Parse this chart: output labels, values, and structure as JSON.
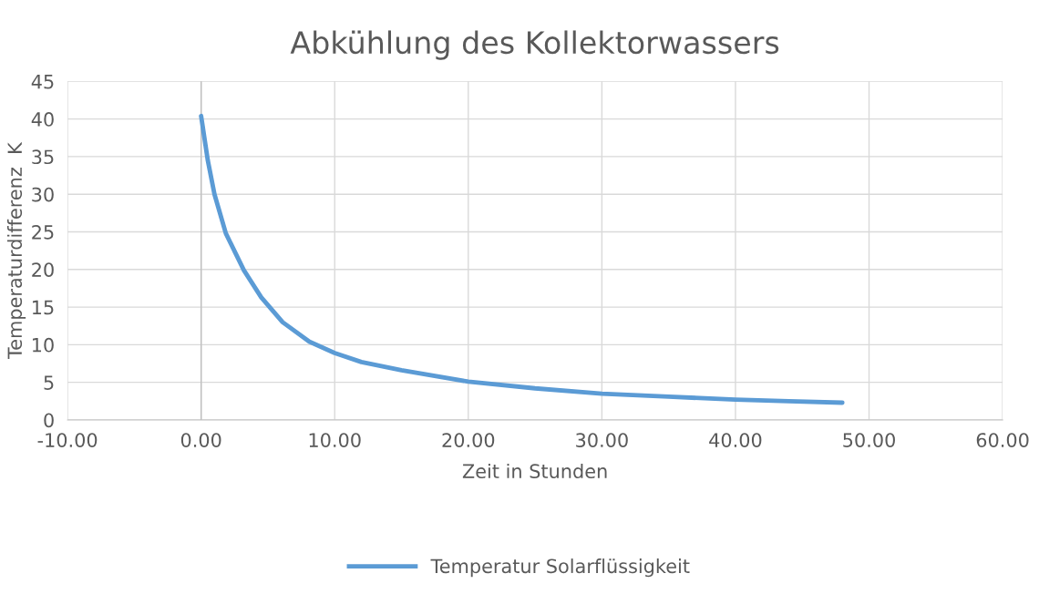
{
  "chart_data": {
    "type": "line",
    "title": "Abkühlung des Kollektorwassers",
    "xlabel": "Zeit in Stunden",
    "ylabel": "Temperaturdifferenz  K",
    "series": [
      {
        "name": "Temperatur Solarflüssigkeit",
        "color": "#5b9bd5",
        "x": [
          0,
          0.5,
          1,
          1.85,
          3.2,
          4.5,
          6.1,
          8.1,
          10,
          12,
          15,
          20,
          25,
          30,
          35,
          40,
          44,
          48
        ],
        "values": [
          40.4,
          34.5,
          30.0,
          24.8,
          19.9,
          16.3,
          13.0,
          10.4,
          8.9,
          7.7,
          6.6,
          5.1,
          4.2,
          3.5,
          3.1,
          2.7,
          2.5,
          2.3
        ]
      }
    ],
    "xlim": [
      -10,
      60
    ],
    "xticks": [
      {
        "value": -10,
        "label": "-10.00"
      },
      {
        "value": 0,
        "label": "0.00"
      },
      {
        "value": 10,
        "label": "10.00"
      },
      {
        "value": 20,
        "label": "20.00"
      },
      {
        "value": 30,
        "label": "30.00"
      },
      {
        "value": 40,
        "label": "40.00"
      },
      {
        "value": 50,
        "label": "50.00"
      },
      {
        "value": 60,
        "label": "60.00"
      }
    ],
    "ylim": [
      0,
      45
    ],
    "yticks": [
      0,
      5,
      10,
      15,
      20,
      25,
      30,
      35,
      40,
      45
    ],
    "grid": true,
    "legend": "bottom",
    "marker": "none",
    "line_style": "solid"
  }
}
